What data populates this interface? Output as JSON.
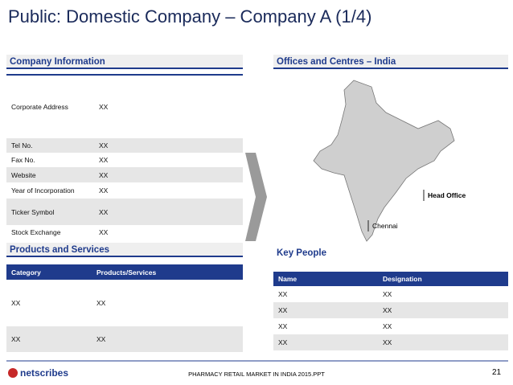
{
  "header": {
    "title": "Public: Domestic Company – Company A (1/4)"
  },
  "company_info": {
    "heading": "Company Information",
    "rows": [
      [
        "Corporate Address",
        "XX"
      ],
      [
        "Tel No.",
        "XX"
      ],
      [
        "Fax No.",
        "XX"
      ],
      [
        "Website",
        "XX"
      ],
      [
        "Year of Incorporation",
        "XX"
      ],
      [
        "Ticker Symbol",
        "XX"
      ],
      [
        "Stock Exchange",
        "XX"
      ]
    ]
  },
  "products": {
    "heading": "Products and Services",
    "columns": [
      "Category",
      "Products/Services"
    ],
    "rows": [
      [
        "XX",
        "XX"
      ],
      [
        "XX",
        "XX"
      ]
    ]
  },
  "offices": {
    "heading": "Offices and Centres – India",
    "labels": [
      "Head Office",
      "Chennai"
    ]
  },
  "key_people": {
    "heading": "Key People",
    "columns": [
      "Name",
      "Designation"
    ],
    "rows": [
      [
        "XX",
        "XX"
      ],
      [
        "XX",
        "XX"
      ],
      [
        "XX",
        "XX"
      ],
      [
        "XX",
        "XX"
      ]
    ]
  },
  "footer": {
    "logo": "netscribes",
    "text": "PHARMACY RETAIL MARKET IN INDIA 2015.PPT",
    "page": "21"
  }
}
